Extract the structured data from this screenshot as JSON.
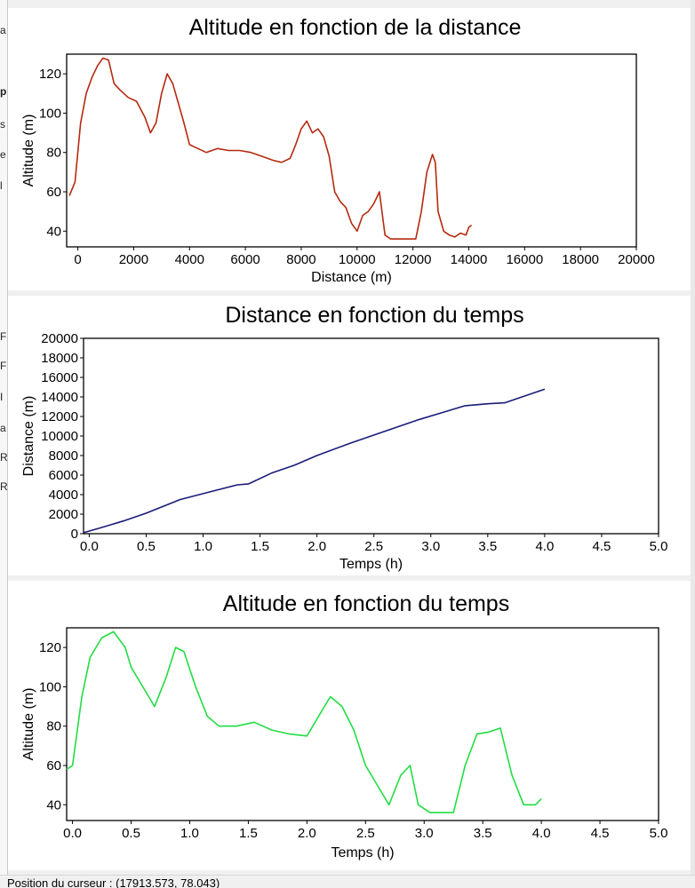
{
  "left_fragments": [
    "a",
    "p",
    "s",
    "e",
    "l",
    "F",
    "F",
    "I",
    "a",
    "R",
    "R"
  ],
  "status": {
    "cursor_position": "Position du curseur : (17913.573, 78.043)"
  },
  "chart_data": [
    {
      "type": "line",
      "title": "Altitude en fonction de la distance",
      "xlabel": "Distance (m)",
      "ylabel": "Altitude (m)",
      "xlim": [
        -400,
        20000
      ],
      "ylim": [
        32,
        130
      ],
      "xticks": [
        0,
        2000,
        4000,
        6000,
        8000,
        10000,
        12000,
        14000,
        16000,
        18000,
        20000
      ],
      "yticks": [
        40,
        60,
        80,
        100,
        120
      ],
      "color": "#b52a10",
      "series": [
        {
          "x": [
            -300,
            -100,
            100,
            300,
            500,
            700,
            900,
            1100,
            1300,
            1500,
            1800,
            2100,
            2400,
            2600,
            2800,
            3000,
            3200,
            3400,
            3600,
            3800,
            4000,
            4300,
            4600,
            5000,
            5400,
            5800,
            6200,
            6600,
            7000,
            7300,
            7600,
            7800,
            8000,
            8200,
            8400,
            8600,
            8800,
            9000,
            9200,
            9400,
            9600,
            9800,
            10000,
            10200,
            10400,
            10600,
            10800,
            11000,
            11200,
            11500,
            11800,
            12100,
            12300,
            12500,
            12700,
            12800,
            12900,
            13100,
            13300,
            13500,
            13700,
            13900,
            14000,
            14100
          ],
          "y": [
            58,
            65,
            95,
            110,
            118,
            124,
            128,
            127,
            115,
            112,
            108,
            106,
            98,
            90,
            95,
            110,
            120,
            115,
            105,
            95,
            84,
            82,
            80,
            82,
            81,
            81,
            80,
            78,
            76,
            75,
            77,
            84,
            92,
            96,
            90,
            92,
            88,
            78,
            60,
            55,
            52,
            44,
            40,
            48,
            50,
            54,
            60,
            38,
            36,
            36,
            36,
            36,
            50,
            70,
            79,
            75,
            50,
            40,
            38,
            37,
            39,
            38,
            42,
            43
          ]
        }
      ]
    },
    {
      "type": "line",
      "title": "Distance en fonction du temps",
      "xlabel": "Temps (h)",
      "ylabel": "Distance (m)",
      "xlim": [
        -0.05,
        5.0
      ],
      "ylim": [
        0,
        20000
      ],
      "xticks": [
        0.0,
        0.5,
        1.0,
        1.5,
        2.0,
        2.5,
        3.0,
        3.5,
        4.0,
        4.5,
        5.0
      ],
      "xtick_labels": [
        "0.0",
        "0.5",
        "1.0",
        "1.5",
        "2.0",
        "2.5",
        "3.0",
        "3.5",
        "4.0",
        "4.5",
        "5.0"
      ],
      "yticks": [
        0,
        2000,
        4000,
        6000,
        8000,
        10000,
        12000,
        14000,
        16000,
        18000,
        20000
      ],
      "color": "#1a1a7a",
      "series": [
        {
          "x": [
            -0.05,
            0.1,
            0.3,
            0.5,
            0.8,
            1.0,
            1.3,
            1.4,
            1.6,
            1.8,
            2.0,
            2.3,
            2.6,
            2.9,
            3.1,
            3.3,
            3.5,
            3.65,
            3.8,
            4.0
          ],
          "y": [
            100,
            600,
            1300,
            2100,
            3500,
            4100,
            5000,
            5100,
            6200,
            7000,
            8000,
            9300,
            10500,
            11700,
            12400,
            13100,
            13300,
            13400,
            14000,
            14800
          ]
        }
      ]
    },
    {
      "type": "line",
      "title": "Altitude en fonction du temps",
      "xlabel": "Temps (h)",
      "ylabel": "Altitude (m)",
      "xlim": [
        -0.05,
        5.0
      ],
      "ylim": [
        32,
        130
      ],
      "xticks": [
        0.0,
        0.5,
        1.0,
        1.5,
        2.0,
        2.5,
        3.0,
        3.5,
        4.0,
        4.5,
        5.0
      ],
      "xtick_labels": [
        "0.0",
        "0.5",
        "1.0",
        "1.5",
        "2.0",
        "2.5",
        "3.0",
        "3.5",
        "4.0",
        "4.5",
        "5.0"
      ],
      "yticks": [
        40,
        60,
        80,
        100,
        120
      ],
      "color": "#22dd44",
      "series": [
        {
          "x": [
            -0.05,
            0.0,
            0.08,
            0.15,
            0.25,
            0.35,
            0.45,
            0.5,
            0.6,
            0.7,
            0.8,
            0.88,
            0.95,
            1.05,
            1.15,
            1.25,
            1.4,
            1.55,
            1.7,
            1.85,
            2.0,
            2.1,
            2.2,
            2.3,
            2.4,
            2.5,
            2.6,
            2.7,
            2.8,
            2.88,
            2.95,
            3.05,
            3.15,
            3.25,
            3.35,
            3.45,
            3.55,
            3.65,
            3.75,
            3.85,
            3.95,
            4.0
          ],
          "y": [
            58,
            60,
            95,
            115,
            125,
            128,
            120,
            110,
            100,
            90,
            105,
            120,
            118,
            100,
            85,
            80,
            80,
            82,
            78,
            76,
            75,
            85,
            95,
            90,
            78,
            60,
            50,
            40,
            55,
            60,
            40,
            36,
            36,
            36,
            60,
            76,
            77,
            79,
            55,
            40,
            40,
            43
          ]
        }
      ]
    }
  ]
}
